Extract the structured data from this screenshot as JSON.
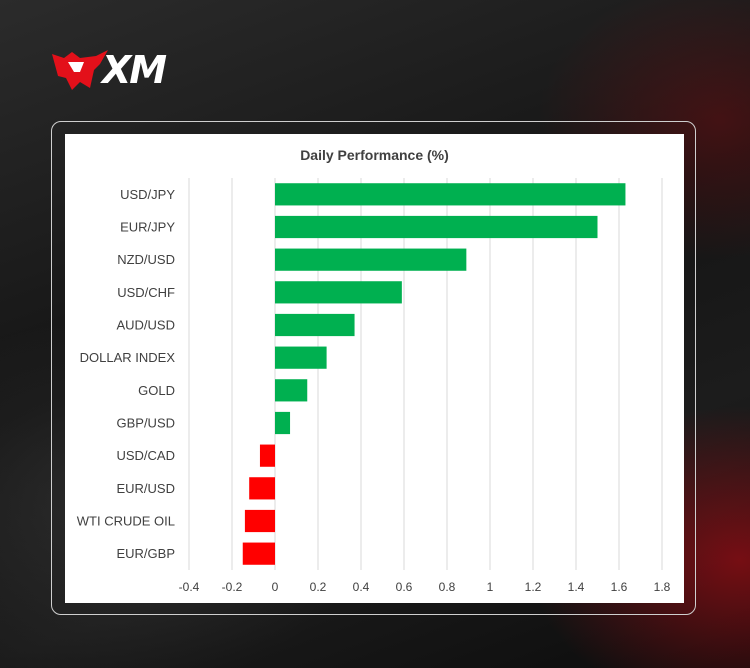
{
  "brand": {
    "name": "XM"
  },
  "chart_data": {
    "type": "bar",
    "orientation": "horizontal",
    "title": "Daily Performance (%)",
    "xlabel": "",
    "ylabel": "",
    "categories": [
      "USD/JPY",
      "EUR/JPY",
      "NZD/USD",
      "USD/CHF",
      "AUD/USD",
      "DOLLAR INDEX",
      "GOLD",
      "GBP/USD",
      "USD/CAD",
      "EUR/USD",
      "WTI CRUDE OIL",
      "EUR/GBP"
    ],
    "values": [
      1.63,
      1.5,
      0.89,
      0.59,
      0.37,
      0.24,
      0.15,
      0.07,
      -0.07,
      -0.12,
      -0.14,
      -0.15
    ],
    "xlim": [
      -0.4,
      1.8
    ],
    "xticks": [
      "-0.4",
      "-0.2",
      "0",
      "0.2",
      "0.4",
      "0.6",
      "0.8",
      "1",
      "1.2",
      "1.4",
      "1.6",
      "1.8"
    ],
    "grid": "vertical",
    "legend": "none",
    "colors": {
      "positive": "#00b050",
      "negative": "#ff0000",
      "grid": "#d9d9d9"
    }
  }
}
